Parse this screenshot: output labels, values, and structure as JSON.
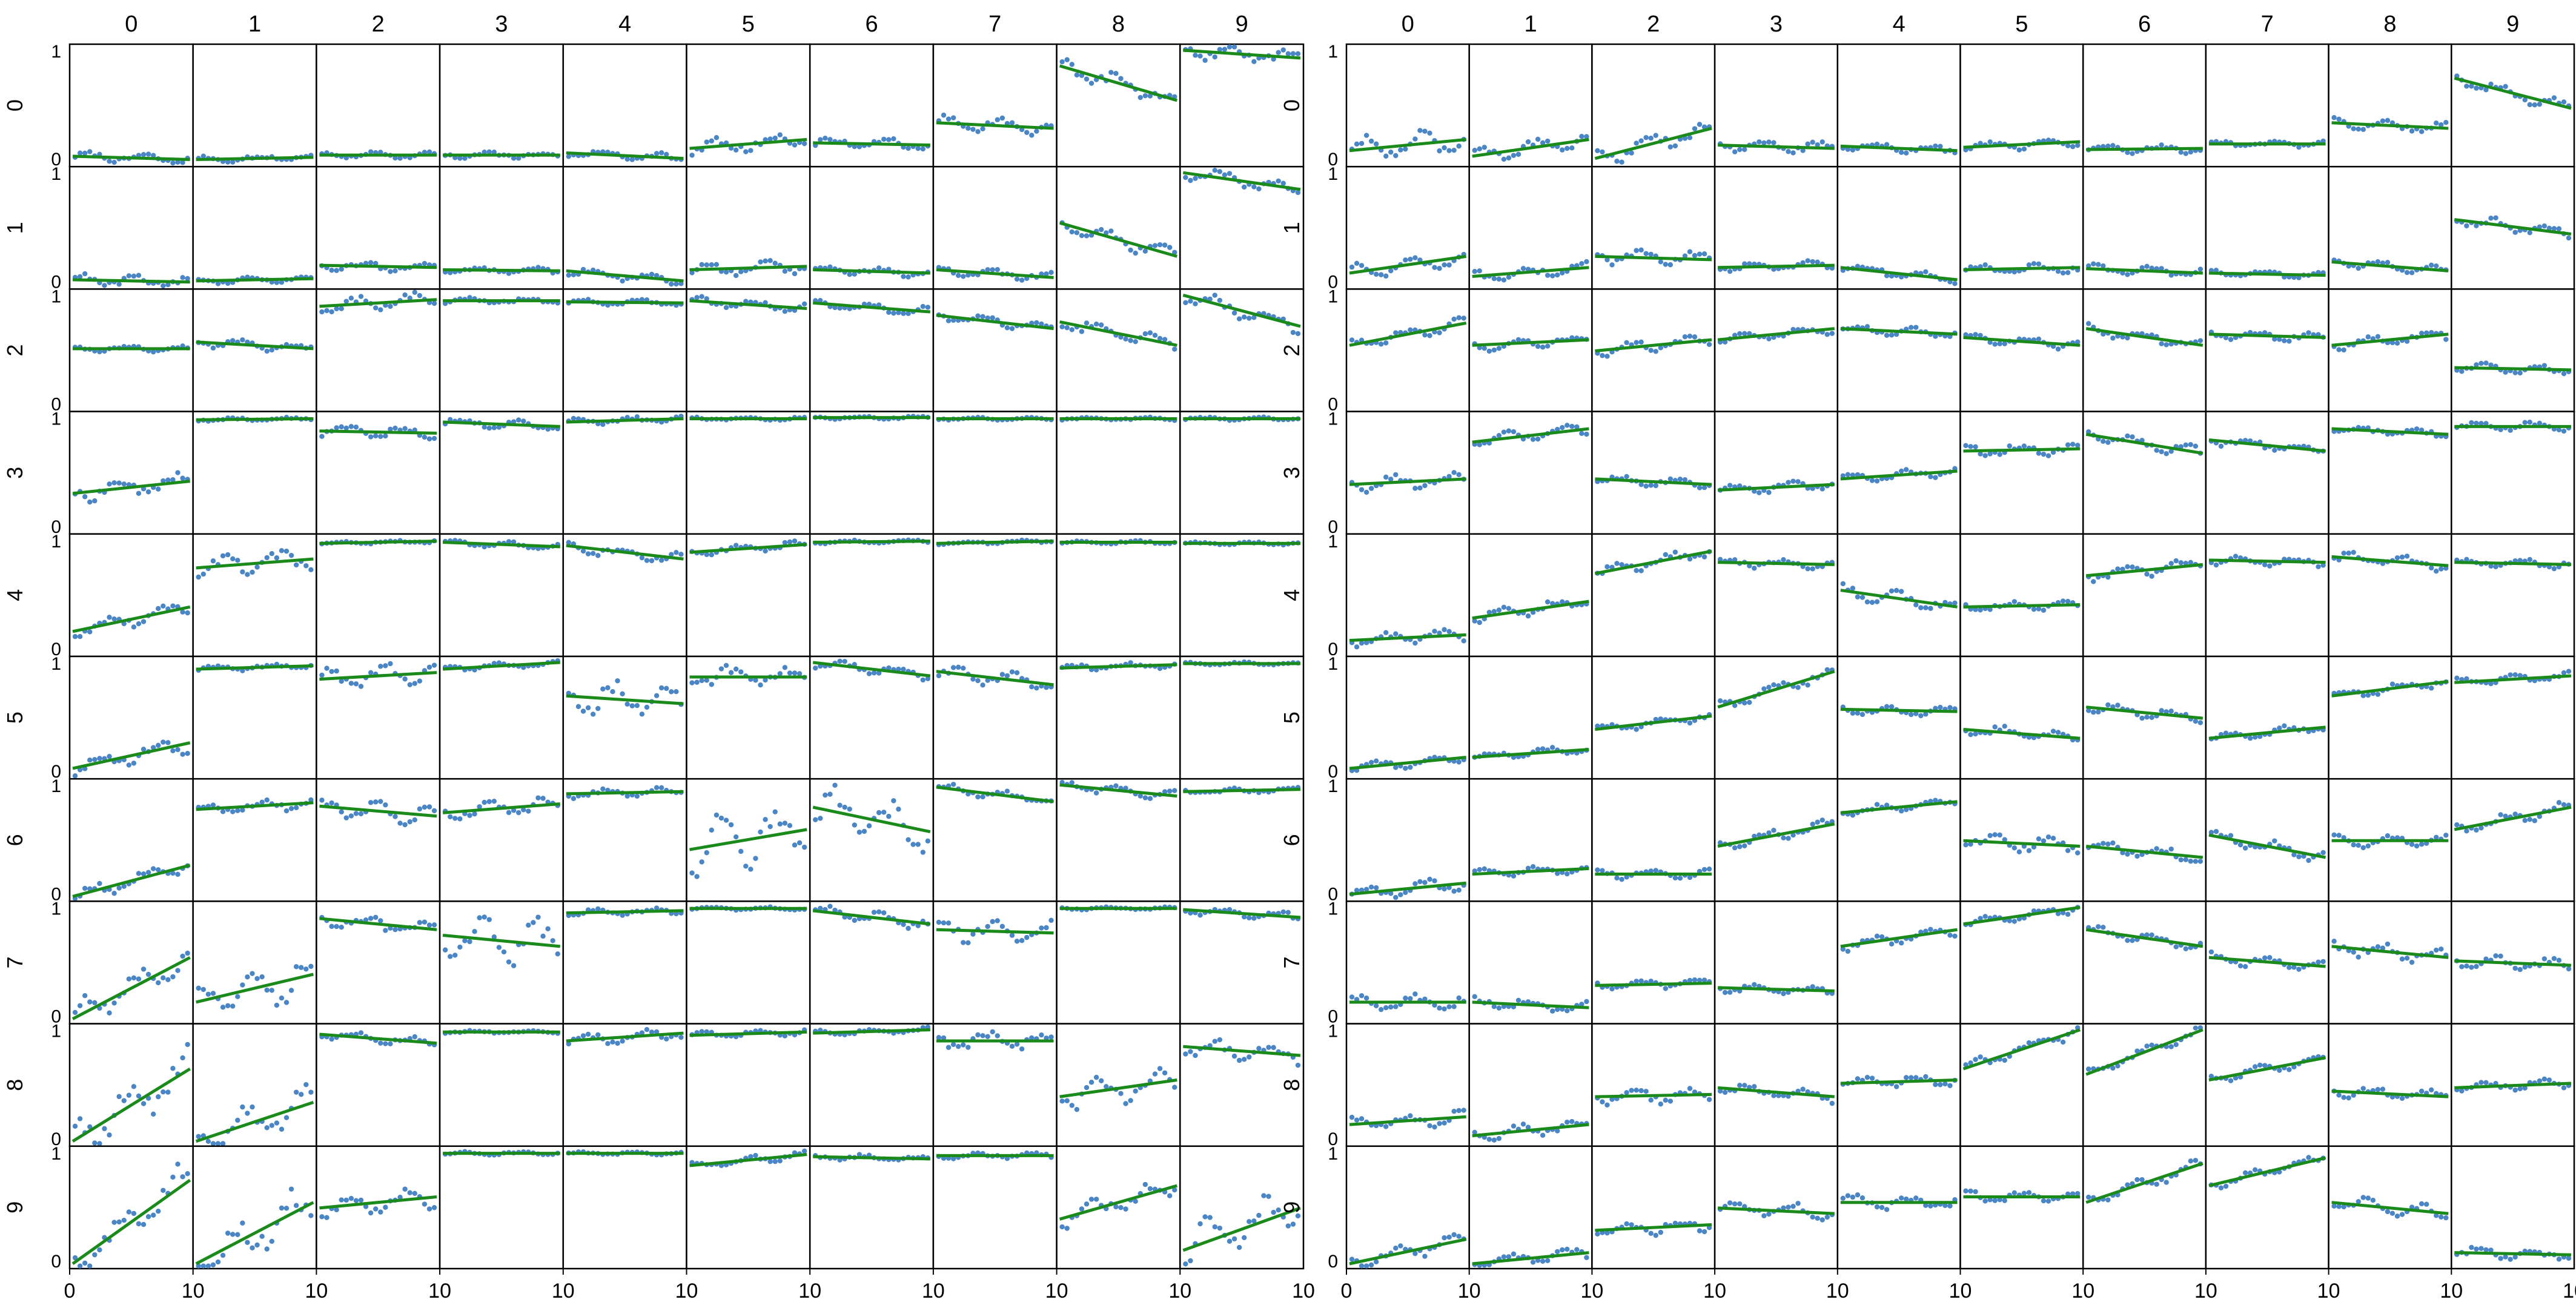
{
  "figure": {
    "col_labels": [
      "0",
      "1",
      "2",
      "3",
      "4",
      "5",
      "6",
      "7",
      "8",
      "9"
    ],
    "row_labels": [
      "0",
      "1",
      "2",
      "3",
      "4",
      "5",
      "6",
      "7",
      "8",
      "9"
    ],
    "y_tick_labels": [
      "0",
      "1"
    ],
    "x_tick_labels": [
      "0",
      "10"
    ],
    "point_color": "#4a86c5",
    "line_color": "#1a8a1a",
    "frame_color": "#000000"
  },
  "chart_data": [
    {
      "type": "scatter",
      "panel": "left",
      "description": "small-multiples grid: each cell shows y over x = 0..10 with a fitted linear trend; grid_fits[row][col] = [y at x=0, y at x=10, scatter amplitude]",
      "x_range": [
        0,
        10
      ],
      "y_range": [
        0,
        1
      ],
      "grid_fits": [
        [
          [
            0.05,
            0.02,
            0.03
          ],
          [
            0.02,
            0.04,
            0.02
          ],
          [
            0.06,
            0.06,
            0.02
          ],
          [
            0.06,
            0.06,
            0.02
          ],
          [
            0.08,
            0.03,
            0.03
          ],
          [
            0.12,
            0.2,
            0.05
          ],
          [
            0.17,
            0.15,
            0.04
          ],
          [
            0.35,
            0.3,
            0.05
          ],
          [
            0.86,
            0.55,
            0.06
          ],
          [
            1.0,
            0.93,
            0.05
          ]
        ],
        [
          [
            0.04,
            0.02,
            0.04
          ],
          [
            0.03,
            0.05,
            0.02
          ],
          [
            0.17,
            0.15,
            0.03
          ],
          [
            0.13,
            0.12,
            0.02
          ],
          [
            0.12,
            0.03,
            0.03
          ],
          [
            0.13,
            0.16,
            0.05
          ],
          [
            0.13,
            0.1,
            0.03
          ],
          [
            0.13,
            0.06,
            0.03
          ],
          [
            0.55,
            0.25,
            0.05
          ],
          [
            1.0,
            0.85,
            0.05
          ]
        ],
        [
          [
            0.52,
            0.52,
            0.02
          ],
          [
            0.58,
            0.52,
            0.03
          ],
          [
            0.9,
            0.96,
            0.05
          ],
          [
            0.95,
            0.95,
            0.02
          ],
          [
            0.94,
            0.93,
            0.02
          ],
          [
            0.95,
            0.88,
            0.03
          ],
          [
            0.93,
            0.85,
            0.03
          ],
          [
            0.82,
            0.7,
            0.03
          ],
          [
            0.76,
            0.55,
            0.05
          ],
          [
            1.0,
            0.72,
            0.05
          ]
        ],
        [
          [
            0.32,
            0.43,
            0.06
          ],
          [
            0.98,
            0.99,
            0.01
          ],
          [
            0.88,
            0.86,
            0.04
          ],
          [
            0.96,
            0.92,
            0.03
          ],
          [
            0.96,
            0.99,
            0.02
          ],
          [
            0.99,
            0.99,
            0.01
          ],
          [
            1.0,
            1.0,
            0.01
          ],
          [
            0.99,
            0.99,
            0.01
          ],
          [
            0.99,
            0.99,
            0.01
          ],
          [
            0.99,
            0.99,
            0.01
          ]
        ],
        [
          [
            0.18,
            0.4,
            0.05
          ],
          [
            0.75,
            0.83,
            0.07
          ],
          [
            0.97,
            0.99,
            0.01
          ],
          [
            0.98,
            0.94,
            0.02
          ],
          [
            0.95,
            0.83,
            0.04
          ],
          [
            0.89,
            0.96,
            0.03
          ],
          [
            0.98,
            0.99,
            0.01
          ],
          [
            0.97,
            0.99,
            0.01
          ],
          [
            0.98,
            0.98,
            0.01
          ],
          [
            0.97,
            0.97,
            0.01
          ]
        ],
        [
          [
            0.05,
            0.28,
            0.06
          ],
          [
            0.94,
            0.97,
            0.02
          ],
          [
            0.85,
            0.91,
            0.08
          ],
          [
            0.94,
            1.0,
            0.02
          ],
          [
            0.7,
            0.63,
            0.12
          ],
          [
            0.87,
            0.87,
            0.07
          ],
          [
            1.0,
            0.88,
            0.04
          ],
          [
            0.92,
            0.8,
            0.05
          ],
          [
            0.95,
            0.98,
            0.02
          ],
          [
            0.99,
            0.99,
            0.01
          ]
        ],
        [
          [
            0.0,
            0.28,
            0.05
          ],
          [
            0.78,
            0.84,
            0.04
          ],
          [
            0.81,
            0.72,
            0.07
          ],
          [
            0.75,
            0.83,
            0.06
          ],
          [
            0.92,
            0.94,
            0.03
          ],
          [
            0.42,
            0.6,
            0.18
          ],
          [
            0.8,
            0.58,
            0.15
          ],
          [
            0.98,
            0.85,
            0.03
          ],
          [
            1.0,
            0.9,
            0.03
          ],
          [
            0.94,
            0.96,
            0.02
          ]
        ],
        [
          [
            0.0,
            0.55,
            0.1
          ],
          [
            0.15,
            0.4,
            0.15
          ],
          [
            0.9,
            0.8,
            0.05
          ],
          [
            0.75,
            0.65,
            0.18
          ],
          [
            0.95,
            0.97,
            0.02
          ],
          [
            0.99,
            0.99,
            0.01
          ],
          [
            0.97,
            0.85,
            0.04
          ],
          [
            0.8,
            0.77,
            0.08
          ],
          [
            0.99,
            0.99,
            0.01
          ],
          [
            0.98,
            0.91,
            0.03
          ]
        ],
        [
          [
            0.0,
            0.65,
            0.15
          ],
          [
            0.0,
            0.35,
            0.15
          ],
          [
            0.96,
            0.88,
            0.03
          ],
          [
            0.98,
            0.98,
            0.01
          ],
          [
            0.9,
            0.97,
            0.04
          ],
          [
            0.95,
            0.98,
            0.02
          ],
          [
            0.97,
            1.0,
            0.02
          ],
          [
            0.9,
            0.9,
            0.06
          ],
          [
            0.4,
            0.55,
            0.1
          ],
          [
            0.85,
            0.77,
            0.06
          ]
        ],
        [
          [
            0.0,
            0.75,
            0.15
          ],
          [
            0.0,
            0.55,
            0.15
          ],
          [
            0.5,
            0.6,
            0.07
          ],
          [
            0.99,
            0.99,
            0.01
          ],
          [
            0.99,
            0.99,
            0.01
          ],
          [
            0.88,
            0.98,
            0.03
          ],
          [
            0.96,
            0.94,
            0.02
          ],
          [
            0.97,
            0.97,
            0.02
          ],
          [
            0.4,
            0.7,
            0.07
          ],
          [
            0.12,
            0.5,
            0.15
          ]
        ]
      ]
    },
    {
      "type": "scatter",
      "panel": "right",
      "description": "small-multiples grid: each cell shows y over x = 0..10 with a fitted linear trend; grid_fits[row][col] = [y at x=0, y at x=10, scatter amplitude]",
      "x_range": [
        0,
        10
      ],
      "y_range": [
        0,
        1
      ],
      "grid_fits": [
        [
          [
            0.1,
            0.2,
            0.08
          ],
          [
            0.05,
            0.2,
            0.05
          ],
          [
            0.03,
            0.3,
            0.06
          ],
          [
            0.15,
            0.12,
            0.04
          ],
          [
            0.14,
            0.1,
            0.03
          ],
          [
            0.13,
            0.18,
            0.03
          ],
          [
            0.11,
            0.12,
            0.03
          ],
          [
            0.16,
            0.16,
            0.02
          ],
          [
            0.35,
            0.3,
            0.04
          ],
          [
            0.75,
            0.48,
            0.04
          ]
        ],
        [
          [
            0.1,
            0.25,
            0.05
          ],
          [
            0.07,
            0.15,
            0.04
          ],
          [
            0.25,
            0.22,
            0.05
          ],
          [
            0.15,
            0.17,
            0.03
          ],
          [
            0.15,
            0.04,
            0.03
          ],
          [
            0.13,
            0.15,
            0.03
          ],
          [
            0.14,
            0.1,
            0.03
          ],
          [
            0.1,
            0.08,
            0.02
          ],
          [
            0.2,
            0.12,
            0.03
          ],
          [
            0.58,
            0.45,
            0.04
          ]
        ],
        [
          [
            0.55,
            0.75,
            0.04
          ],
          [
            0.55,
            0.6,
            0.04
          ],
          [
            0.5,
            0.6,
            0.04
          ],
          [
            0.6,
            0.7,
            0.03
          ],
          [
            0.7,
            0.65,
            0.03
          ],
          [
            0.62,
            0.55,
            0.03
          ],
          [
            0.7,
            0.55,
            0.04
          ],
          [
            0.65,
            0.62,
            0.03
          ],
          [
            0.55,
            0.65,
            0.04
          ],
          [
            0.35,
            0.33,
            0.03
          ]
        ],
        [
          [
            0.4,
            0.45,
            0.05
          ],
          [
            0.78,
            0.9,
            0.04
          ],
          [
            0.45,
            0.4,
            0.03
          ],
          [
            0.35,
            0.4,
            0.03
          ],
          [
            0.45,
            0.52,
            0.03
          ],
          [
            0.7,
            0.72,
            0.04
          ],
          [
            0.85,
            0.68,
            0.04
          ],
          [
            0.8,
            0.7,
            0.03
          ],
          [
            0.9,
            0.85,
            0.03
          ],
          [
            0.92,
            0.92,
            0.03
          ]
        ],
        [
          [
            0.1,
            0.15,
            0.04
          ],
          [
            0.3,
            0.45,
            0.04
          ],
          [
            0.7,
            0.9,
            0.04
          ],
          [
            0.8,
            0.78,
            0.03
          ],
          [
            0.55,
            0.4,
            0.05
          ],
          [
            0.4,
            0.42,
            0.03
          ],
          [
            0.68,
            0.78,
            0.04
          ],
          [
            0.82,
            0.8,
            0.03
          ],
          [
            0.85,
            0.77,
            0.04
          ],
          [
            0.8,
            0.78,
            0.03
          ]
        ],
        [
          [
            0.05,
            0.15,
            0.03
          ],
          [
            0.15,
            0.22,
            0.03
          ],
          [
            0.4,
            0.52,
            0.03
          ],
          [
            0.6,
            0.92,
            0.04
          ],
          [
            0.58,
            0.56,
            0.03
          ],
          [
            0.4,
            0.32,
            0.04
          ],
          [
            0.6,
            0.5,
            0.04
          ],
          [
            0.32,
            0.42,
            0.03
          ],
          [
            0.7,
            0.83,
            0.03
          ],
          [
            0.82,
            0.88,
            0.03
          ]
        ],
        [
          [
            0.02,
            0.12,
            0.05
          ],
          [
            0.2,
            0.25,
            0.03
          ],
          [
            0.2,
            0.2,
            0.03
          ],
          [
            0.45,
            0.65,
            0.04
          ],
          [
            0.75,
            0.85,
            0.03
          ],
          [
            0.5,
            0.45,
            0.05
          ],
          [
            0.45,
            0.35,
            0.04
          ],
          [
            0.55,
            0.35,
            0.04
          ],
          [
            0.5,
            0.5,
            0.04
          ],
          [
            0.6,
            0.8,
            0.04
          ]
        ],
        [
          [
            0.15,
            0.15,
            0.05
          ],
          [
            0.15,
            0.1,
            0.04
          ],
          [
            0.3,
            0.32,
            0.03
          ],
          [
            0.28,
            0.25,
            0.03
          ],
          [
            0.65,
            0.8,
            0.04
          ],
          [
            0.85,
            1.0,
            0.03
          ],
          [
            0.8,
            0.65,
            0.03
          ],
          [
            0.55,
            0.47,
            0.04
          ],
          [
            0.65,
            0.55,
            0.05
          ],
          [
            0.52,
            0.48,
            0.04
          ]
        ],
        [
          [
            0.15,
            0.22,
            0.05
          ],
          [
            0.05,
            0.15,
            0.04
          ],
          [
            0.4,
            0.42,
            0.05
          ],
          [
            0.48,
            0.4,
            0.04
          ],
          [
            0.52,
            0.55,
            0.04
          ],
          [
            0.65,
            1.0,
            0.04
          ],
          [
            0.6,
            1.0,
            0.03
          ],
          [
            0.55,
            0.75,
            0.03
          ],
          [
            0.45,
            0.4,
            0.04
          ],
          [
            0.48,
            0.52,
            0.03
          ]
        ],
        [
          [
            0.0,
            0.22,
            0.05
          ],
          [
            0.0,
            0.1,
            0.04
          ],
          [
            0.3,
            0.35,
            0.05
          ],
          [
            0.5,
            0.45,
            0.05
          ],
          [
            0.55,
            0.55,
            0.05
          ],
          [
            0.6,
            0.6,
            0.04
          ],
          [
            0.55,
            0.9,
            0.04
          ],
          [
            0.7,
            0.95,
            0.03
          ],
          [
            0.55,
            0.45,
            0.05
          ],
          [
            0.1,
            0.08,
            0.04
          ]
        ]
      ]
    }
  ]
}
